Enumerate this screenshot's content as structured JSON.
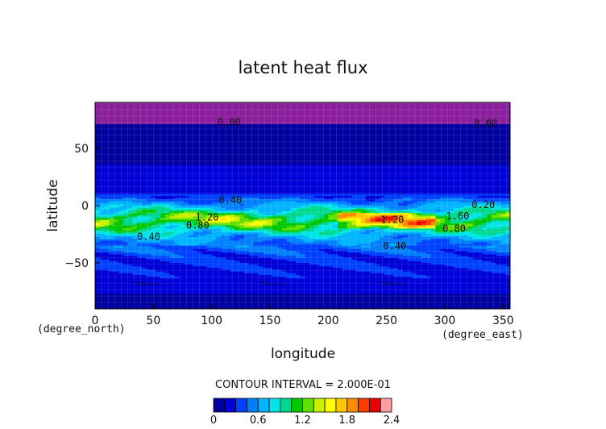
{
  "chart_data": {
    "type": "heatmap",
    "title": "latent heat flux",
    "xlabel": "longitude",
    "ylabel": "latitude",
    "x_unit": "(degree_east)",
    "y_unit": "(degree_north)",
    "xlim": [
      0,
      356
    ],
    "ylim": [
      -90,
      90
    ],
    "xticks": [
      0,
      50,
      100,
      150,
      200,
      250,
      300,
      350
    ],
    "yticks": [
      -50,
      0,
      50
    ],
    "contour_interval_text": "CONTOUR INTERVAL = 2.000E-01",
    "colorbar": {
      "ticks": [
        0,
        0.6,
        1.2,
        1.8,
        2.4
      ],
      "tick_labels": [
        "0",
        "0.6",
        "1.2",
        "1.8",
        "2.4"
      ],
      "range": [
        0,
        2.4
      ],
      "colors": [
        "#0000a0",
        "#0000d8",
        "#0040ff",
        "#0080ff",
        "#00b4ff",
        "#00e6e6",
        "#00d890",
        "#00c800",
        "#60e000",
        "#c8f000",
        "#ffff00",
        "#ffc800",
        "#ff8c00",
        "#ff3c00",
        "#e80000",
        "#ff9ea0"
      ]
    },
    "zonal_profile": {
      "lat": [
        -90,
        -78,
        -65,
        -55,
        -45,
        -38,
        -32,
        -26,
        -20,
        -16,
        -12,
        -8,
        -4,
        0,
        4,
        8,
        14,
        25,
        40,
        55,
        66,
        72,
        80,
        90
      ],
      "value": [
        0.02,
        0.14,
        0.22,
        0.28,
        0.34,
        0.42,
        0.52,
        0.66,
        0.96,
        1.16,
        1.26,
        1.14,
        0.86,
        0.66,
        0.48,
        0.34,
        0.24,
        0.18,
        0.14,
        0.12,
        0.1,
        0.01,
        0.0,
        0.0
      ]
    },
    "contour_labels": [
      {
        "text": "0.00",
        "lon": 115,
        "lat": 70
      },
      {
        "text": "0.00",
        "lon": 335,
        "lat": 69
      },
      {
        "text": "0.40",
        "lon": 116,
        "lat": 2
      },
      {
        "text": "0.20",
        "lon": 333,
        "lat": -2
      },
      {
        "text": "1.20",
        "lon": 96,
        "lat": -13
      },
      {
        "text": "0.80",
        "lon": 88,
        "lat": -20
      },
      {
        "text": "1.20",
        "lon": 255,
        "lat": -15
      },
      {
        "text": "1.60",
        "lon": 311,
        "lat": -12
      },
      {
        "text": "0.80",
        "lon": 308,
        "lat": -23
      },
      {
        "text": "0.40",
        "lon": 46,
        "lat": -30
      },
      {
        "text": "0.40",
        "lon": 257,
        "lat": -38
      }
    ]
  }
}
